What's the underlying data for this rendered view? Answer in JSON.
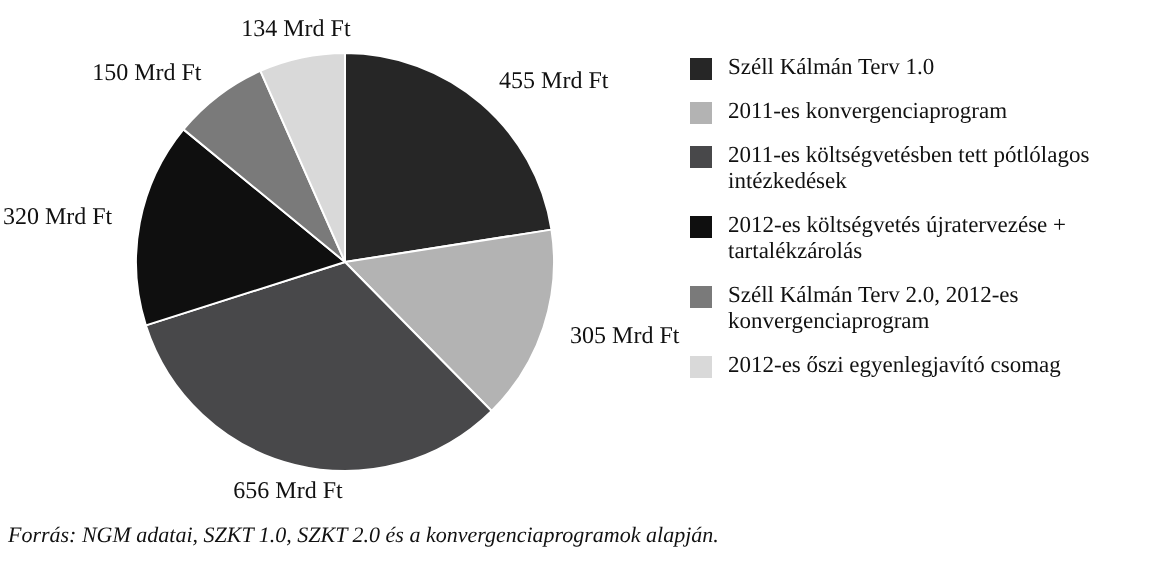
{
  "chart_data": {
    "type": "pie",
    "categories": [
      "Széll Kálmán Terv 1.0",
      "2011-es konvergenciaprogram",
      "2011-es költségvetésben tett pótlólagos intézkedések",
      "2012-es költségvetés újratervezése + tartalékzárolás",
      "Széll Kálmán Terv 2.0, 2012-es konvergenciaprogram",
      "2012-es őszi egyenlegjavító csomag"
    ],
    "values": [
      455,
      305,
      656,
      320,
      150,
      134
    ],
    "value_labels": [
      "455 Mrd Ft",
      "305 Mrd Ft",
      "656 Mrd Ft",
      "320 Mrd Ft",
      "150 Mrd Ft",
      "134 Mrd Ft"
    ],
    "colors": [
      "#262626",
      "#b3b3b3",
      "#48484a",
      "#0f0f0f",
      "#7a7a7a",
      "#d9d9d9"
    ],
    "legend": "right",
    "annotations": [
      "Forrás: NGM adatai, SZKT 1.0, SZKT 2.0 és a konvergenciaprogramok alapján."
    ]
  }
}
